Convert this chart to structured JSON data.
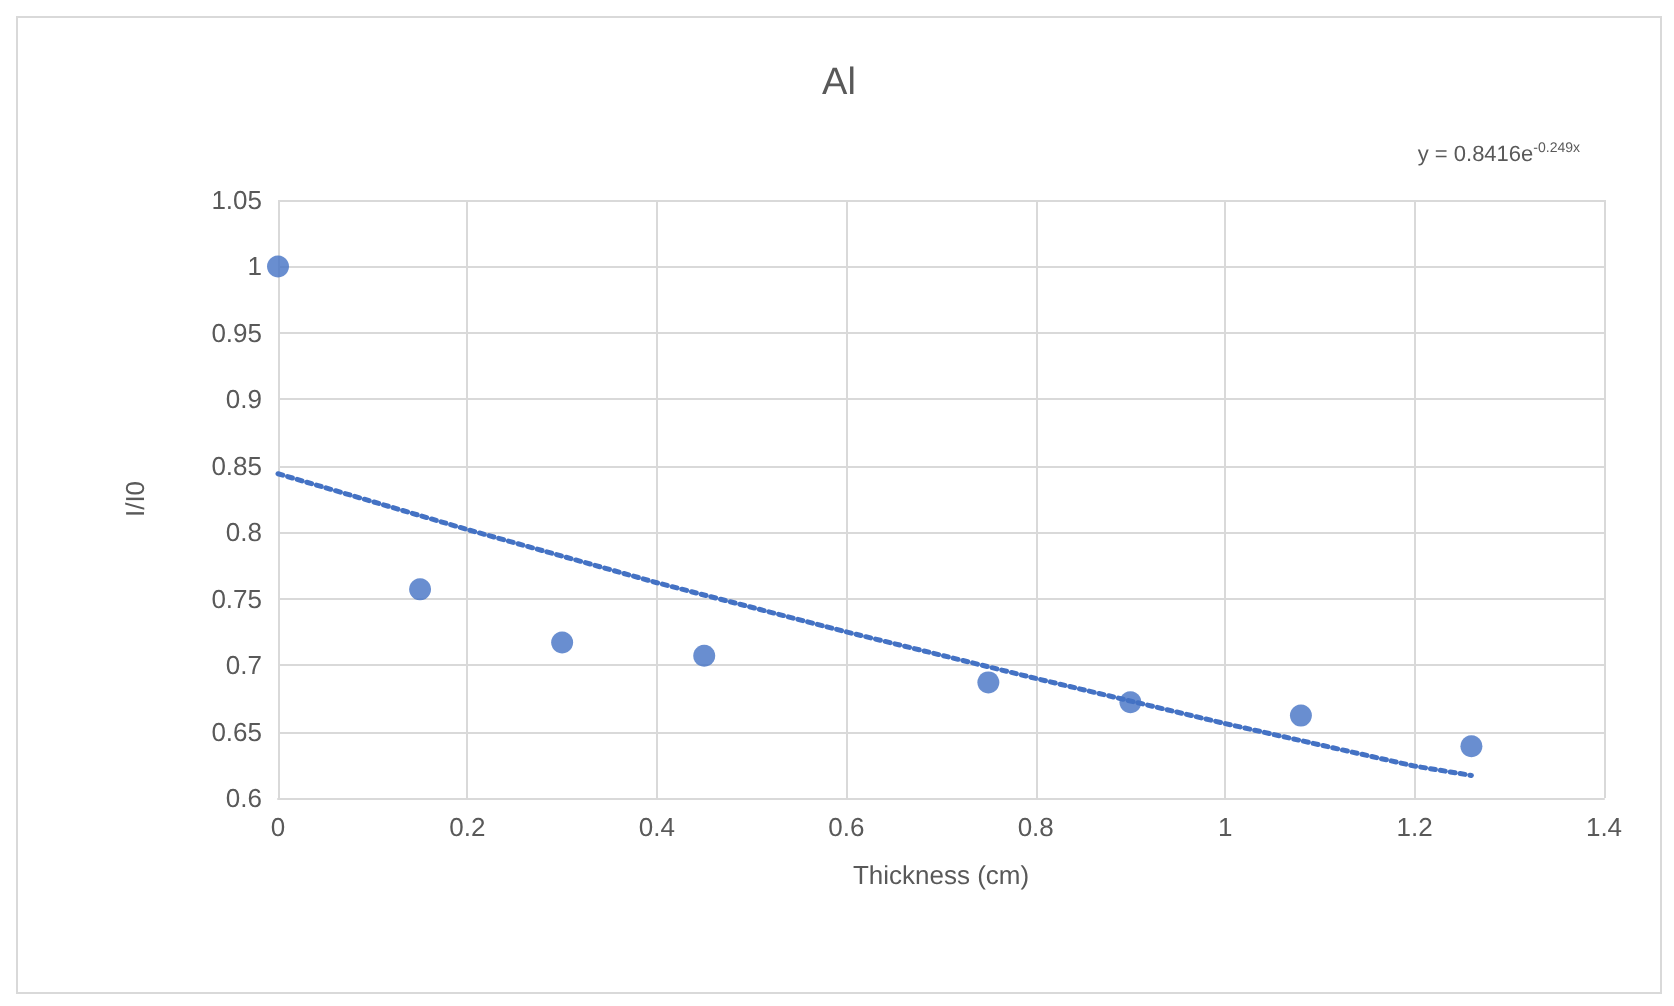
{
  "chart_data": {
    "type": "scatter",
    "title": "Al",
    "xlabel": "Thickness (cm)",
    "ylabel": "I/I0",
    "x": [
      0,
      0.15,
      0.3,
      0.45,
      0.75,
      0.9,
      1.08,
      1.26
    ],
    "series": [
      {
        "color": "#4472c4",
        "values": [
          1,
          0.757,
          0.717,
          0.707,
          0.687,
          0.672,
          0.662,
          0.639
        ],
        "marker": "circle"
      },
      {
        "type": "line",
        "color": "#4472c4",
        "line_style": "dotted",
        "marker": "none",
        "x": [
          0,
          0.2,
          0.4,
          0.6,
          0.8,
          1,
          1.2,
          1.26
        ],
        "values": [
          0.844,
          0.802,
          0.762,
          0.725,
          0.69,
          0.656,
          0.624,
          0.617
        ]
      }
    ],
    "xlim": [
      0,
      1.4
    ],
    "xticks": [
      0,
      0.2,
      0.4,
      0.6,
      0.8,
      1,
      1.2,
      1.4
    ],
    "ylim": [
      0.6,
      1.05
    ],
    "yticks": [
      0.6,
      0.65,
      0.7,
      0.75,
      0.8,
      0.85,
      0.9,
      0.95,
      1,
      1.05
    ],
    "grid": true,
    "annotations": [
      "y = 0.8416e$^{-0.249x}$"
    ]
  }
}
